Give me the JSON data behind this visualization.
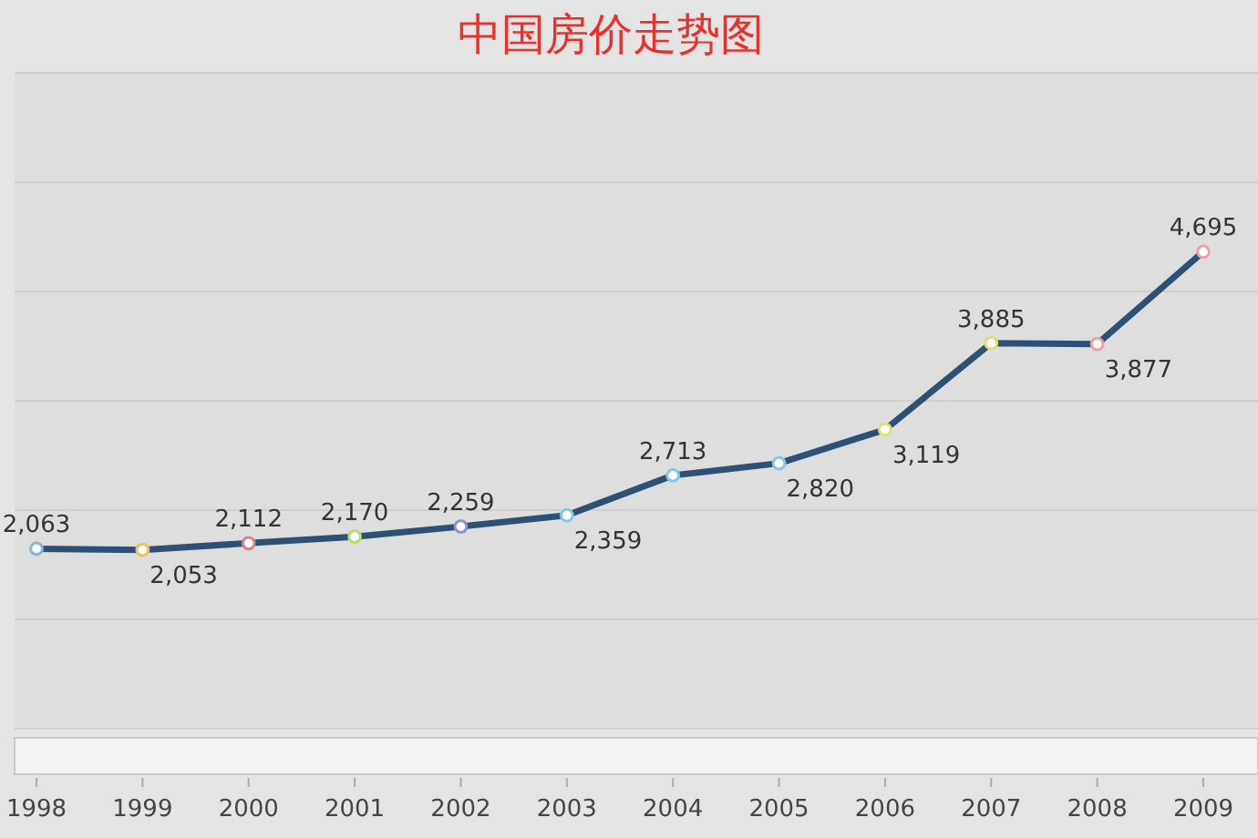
{
  "chart_data": {
    "type": "line",
    "title": "中国房价走势图",
    "categories": [
      "1998",
      "1999",
      "2000",
      "2001",
      "2002",
      "2003",
      "2004",
      "2005",
      "2006",
      "2007",
      "2008",
      "2009"
    ],
    "series": [
      {
        "color": "#2c5076",
        "values": [
          2063,
          2053,
          2112,
          2170,
          2259,
          2359,
          2713,
          2820,
          3119,
          3885,
          3877,
          4695
        ],
        "value_labels": [
          "2,063",
          "2,053",
          "2,112",
          "2,170",
          "2,259",
          "2,359",
          "2,713",
          "2,820",
          "3,119",
          "3,885",
          "3,877",
          "4,695"
        ],
        "colors": [
          "#7fb8d8",
          "#f0c060",
          "#e08080",
          "#b0e070",
          "#9090d0",
          "#80c8e8",
          "#80c8e8",
          "#80c8e8",
          "#e0e070",
          "#e0e070",
          "#f0a0a0",
          "#f0a0a0"
        ]
      }
    ],
    "grid": "y",
    "marker": "circle",
    "line_style": "solid"
  }
}
